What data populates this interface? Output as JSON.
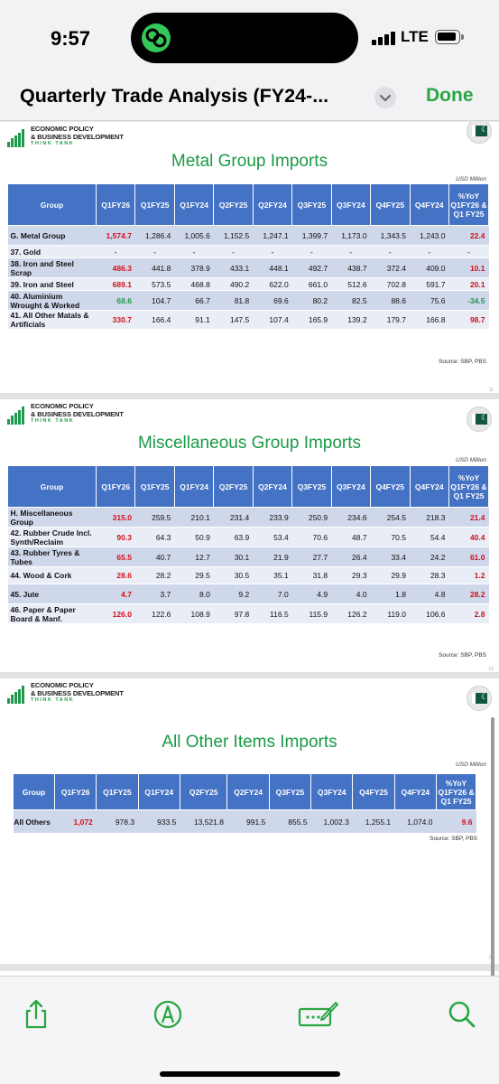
{
  "status_bar": {
    "time": "9:57",
    "network": "LTE"
  },
  "nav": {
    "title": "Quarterly Trade Analysis (FY24-...",
    "done_label": "Done"
  },
  "logo": {
    "line1": "ECONOMIC POLICY",
    "line2": "& BUSINESS DEVELOPMENT",
    "line3": "THINK TANK"
  },
  "pages": [
    {
      "title": "Metal Group Imports",
      "unit": "USD Million",
      "source": "Source: SBP, PBS",
      "page_number": "11",
      "columns": [
        "Group",
        "Q1FY26",
        "Q1FY25",
        "Q1FY24",
        "Q2FY25",
        "Q2FY24",
        "Q3FY25",
        "Q3FY24",
        "Q4FY25",
        "Q4FY24",
        "%YoY Q1FY26 & Q1 FY25"
      ],
      "rows": [
        {
          "label": "G. Metal Group",
          "values": [
            "1,574.7",
            "1,286.4",
            "1,005.6",
            "1,152.5",
            "1,247.1",
            "1,399.7",
            "1,173.0",
            "1,343.5",
            "1,243.0",
            "22.4"
          ],
          "yoy_color": "red"
        },
        {
          "label": "37. Gold",
          "values": [
            "-",
            "-",
            "-",
            "-",
            "-",
            "-",
            "-",
            "-",
            "-",
            "-"
          ],
          "yoy_color": "none"
        },
        {
          "label": "38. Iron and Steel Scrap",
          "values": [
            "486.3",
            "441.8",
            "378.9",
            "433.1",
            "448.1",
            "492.7",
            "438.7",
            "372.4",
            "409.0",
            "10.1"
          ],
          "yoy_color": "red"
        },
        {
          "label": "39. Iron and Steel",
          "values": [
            "689.1",
            "573.5",
            "468.8",
            "490.2",
            "622.0",
            "661.0",
            "512.6",
            "702.8",
            "591.7",
            "20.1"
          ],
          "yoy_color": "red"
        },
        {
          "label": "40. Aluminium Wrought & Worked",
          "values": [
            "68.6",
            "104.7",
            "66.7",
            "81.8",
            "69.6",
            "80.2",
            "82.5",
            "88.6",
            "75.6",
            "-34.5"
          ],
          "yoy_color": "green"
        },
        {
          "label": "41. All Other Matals & Artificials",
          "values": [
            "330.7",
            "166.4",
            "91.1",
            "147.5",
            "107.4",
            "165.9",
            "139.2",
            "179.7",
            "166.8",
            "98.7"
          ],
          "yoy_color": "red"
        }
      ]
    },
    {
      "title": "Miscellaneous Group Imports",
      "unit": "USD Million",
      "source": "Source: SBP, PBS",
      "page_number": "12",
      "columns": [
        "Group",
        "Q1FY26",
        "Q1FY25",
        "Q1FY24",
        "Q2FY25",
        "Q2FY24",
        "Q3FY25",
        "Q3FY24",
        "Q4FY25",
        "Q4FY24",
        "%YoY Q1FY26 & Q1 FY25"
      ],
      "rows": [
        {
          "label": "H. Miscellaneous Group",
          "values": [
            "315.0",
            "259.5",
            "210.1",
            "231.4",
            "233.9",
            "250.9",
            "234.6",
            "254.5",
            "218.3",
            "21.4"
          ],
          "yoy_color": "red"
        },
        {
          "label": "42. Rubber Crude Incl. Synth/Reclaim",
          "values": [
            "90.3",
            "64.3",
            "50.9",
            "63.9",
            "53.4",
            "70.6",
            "48.7",
            "70.5",
            "54.4",
            "40.4"
          ],
          "yoy_color": "red"
        },
        {
          "label": "43. Rubber Tyres & Tubes",
          "values": [
            "65.5",
            "40.7",
            "12.7",
            "30.1",
            "21.9",
            "27.7",
            "26.4",
            "33.4",
            "24.2",
            "61.0"
          ],
          "yoy_color": "red"
        },
        {
          "label": "44. Wood & Cork",
          "values": [
            "28.6",
            "28.2",
            "29.5",
            "30.5",
            "35.1",
            "31.8",
            "29.3",
            "29.9",
            "28.3",
            "1.2"
          ],
          "yoy_color": "red"
        },
        {
          "label": "45. Jute",
          "values": [
            "4.7",
            "3.7",
            "8.0",
            "9.2",
            "7.0",
            "4.9",
            "4.0",
            "1.8",
            "4.8",
            "28.2"
          ],
          "yoy_color": "red"
        },
        {
          "label": "46. Paper & Paper Board & Manf.",
          "values": [
            "126.0",
            "122.6",
            "108.9",
            "97.8",
            "116.5",
            "115.9",
            "126.2",
            "119.0",
            "106.6",
            "2.8"
          ],
          "yoy_color": "red"
        }
      ]
    },
    {
      "title": "All Other Items Imports",
      "unit": "USD Million",
      "source": "Source: SBP, PBS",
      "page_number": "13",
      "columns": [
        "Group",
        "Q1FY26",
        "Q1FY25",
        "Q1FY24",
        "Q2FY25",
        "Q2FY24",
        "Q3FY25",
        "Q3FY24",
        "Q4FY25",
        "Q4FY24",
        "%YoY Q1FY26 & Q1 FY25"
      ],
      "rows": [
        {
          "label": "All Others",
          "values": [
            "1,072",
            "978.3",
            "933.5",
            "13,521.8",
            "991.5",
            "855.5",
            "1,002.3",
            "1,255.1",
            "1,074.0",
            "9.6"
          ],
          "yoy_color": "red"
        }
      ]
    }
  ],
  "toolbar": {
    "icons": [
      "share-icon",
      "markup-icon",
      "signature-icon",
      "search-icon"
    ]
  },
  "colors": {
    "accent_green": "#2aa645",
    "table_header": "#4472c4",
    "title_green": "#1a9a46",
    "negative_red": "#d4101b"
  }
}
